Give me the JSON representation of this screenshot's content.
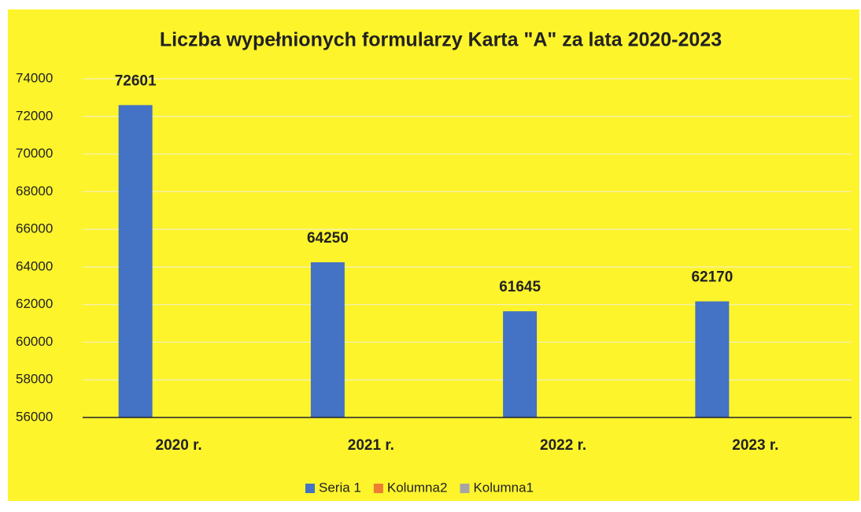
{
  "chart_data": {
    "type": "bar",
    "title": "Liczba wypełnionych formularzy Karta \"A\" za lata 2020-2023",
    "categories": [
      "2020 r.",
      "2021 r.",
      "2022 r.",
      "2023 r."
    ],
    "series": [
      {
        "name": "Seria 1",
        "color": "#4472c4",
        "values": [
          72601,
          64250,
          61645,
          62170
        ]
      },
      {
        "name": "Kolumna2",
        "color": "#ed7d31",
        "values": [
          null,
          null,
          null,
          null
        ]
      },
      {
        "name": "Kolumna1",
        "color": "#a5a5a5",
        "values": [
          null,
          null,
          null,
          null
        ]
      }
    ],
    "ylim": [
      56000,
      74000
    ],
    "yticks": [
      56000,
      58000,
      60000,
      62000,
      64000,
      66000,
      68000,
      70000,
      72000,
      74000
    ],
    "grid": true,
    "legend": "bottom"
  }
}
